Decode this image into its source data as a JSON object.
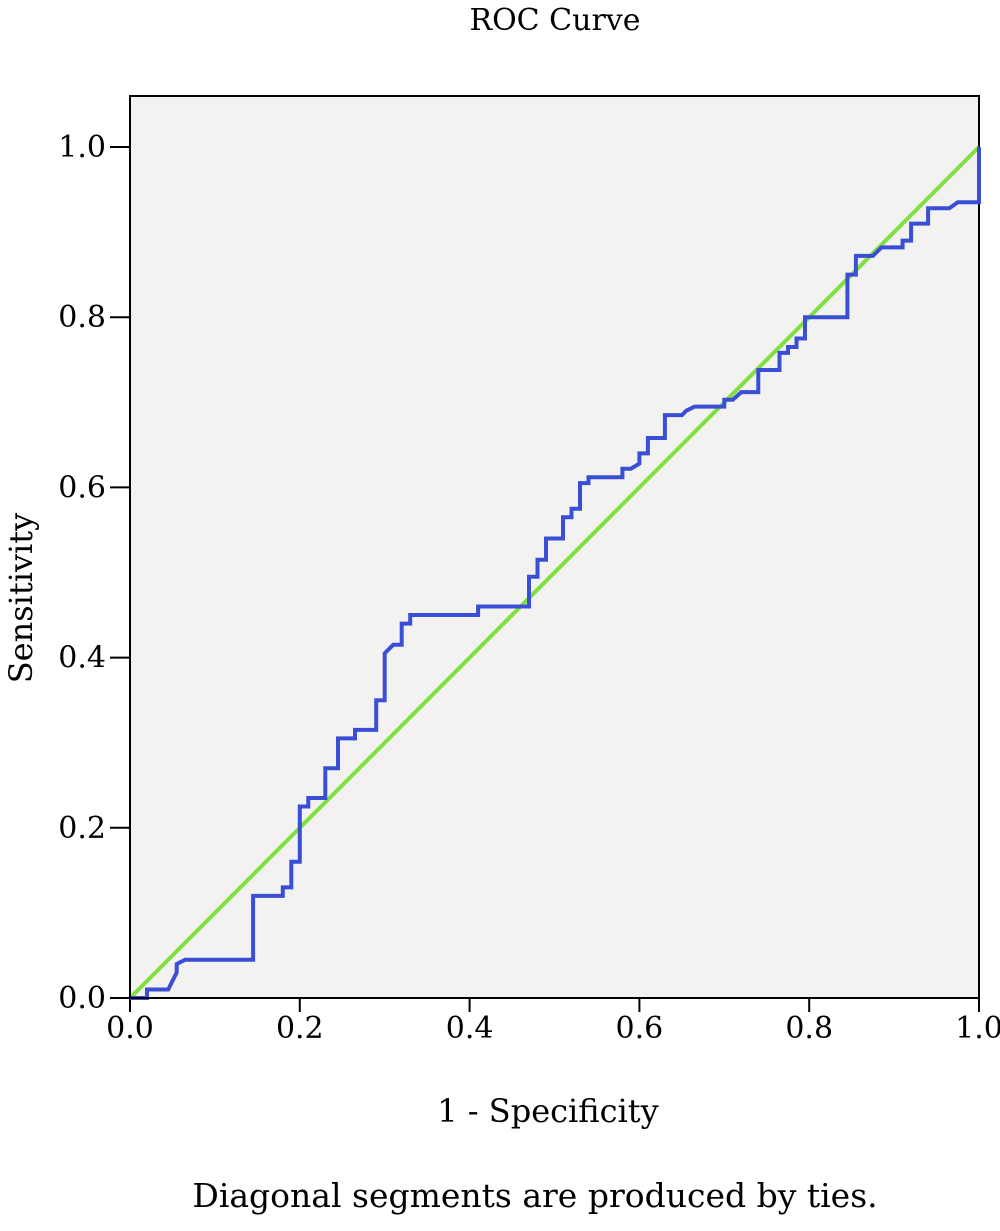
{
  "chart_data": {
    "type": "line",
    "title": "ROC Curve",
    "xlabel": "1 - Specificity",
    "ylabel": "Sensitivity",
    "footnote": "Diagonal segments are produced by ties.",
    "xlim": [
      0,
      1
    ],
    "ylim": [
      0,
      1
    ],
    "x_ticks": [
      0,
      0.2,
      0.4,
      0.6,
      0.8,
      1
    ],
    "x_tick_labels": [
      "0.0",
      "0.2",
      "0.4",
      "0.6",
      "0.8",
      "1.0"
    ],
    "y_ticks": [
      0,
      0.2,
      0.4,
      0.6,
      0.8,
      1
    ],
    "y_tick_labels": [
      "0.0",
      "0.2",
      "0.4",
      "0.6",
      "0.8",
      "1.0"
    ],
    "grid": false,
    "legend": "none",
    "colors": {
      "plot_background": "#f2f2f0",
      "roc_curve": "#3b4fd6",
      "reference_line": "#7fe040"
    },
    "series": [
      {
        "color": "#3b4fd6",
        "points": [
          [
            0.0,
            0.0
          ],
          [
            0.02,
            0.0
          ],
          [
            0.02,
            0.01
          ],
          [
            0.045,
            0.01
          ],
          [
            0.055,
            0.03
          ],
          [
            0.055,
            0.04
          ],
          [
            0.065,
            0.045
          ],
          [
            0.145,
            0.045
          ],
          [
            0.145,
            0.12
          ],
          [
            0.18,
            0.12
          ],
          [
            0.18,
            0.13
          ],
          [
            0.19,
            0.13
          ],
          [
            0.19,
            0.16
          ],
          [
            0.2,
            0.16
          ],
          [
            0.2,
            0.225
          ],
          [
            0.21,
            0.225
          ],
          [
            0.21,
            0.235
          ],
          [
            0.23,
            0.235
          ],
          [
            0.23,
            0.27
          ],
          [
            0.245,
            0.27
          ],
          [
            0.245,
            0.305
          ],
          [
            0.265,
            0.305
          ],
          [
            0.265,
            0.315
          ],
          [
            0.29,
            0.315
          ],
          [
            0.29,
            0.35
          ],
          [
            0.3,
            0.35
          ],
          [
            0.3,
            0.405
          ],
          [
            0.31,
            0.415
          ],
          [
            0.32,
            0.415
          ],
          [
            0.32,
            0.44
          ],
          [
            0.33,
            0.44
          ],
          [
            0.33,
            0.45
          ],
          [
            0.41,
            0.45
          ],
          [
            0.41,
            0.46
          ],
          [
            0.47,
            0.46
          ],
          [
            0.47,
            0.495
          ],
          [
            0.48,
            0.495
          ],
          [
            0.48,
            0.515
          ],
          [
            0.49,
            0.515
          ],
          [
            0.49,
            0.54
          ],
          [
            0.51,
            0.54
          ],
          [
            0.51,
            0.565
          ],
          [
            0.52,
            0.565
          ],
          [
            0.52,
            0.575
          ],
          [
            0.53,
            0.575
          ],
          [
            0.53,
            0.605
          ],
          [
            0.54,
            0.605
          ],
          [
            0.54,
            0.612
          ],
          [
            0.58,
            0.612
          ],
          [
            0.58,
            0.622
          ],
          [
            0.59,
            0.622
          ],
          [
            0.6,
            0.628
          ],
          [
            0.6,
            0.64
          ],
          [
            0.61,
            0.64
          ],
          [
            0.61,
            0.658
          ],
          [
            0.63,
            0.658
          ],
          [
            0.63,
            0.685
          ],
          [
            0.65,
            0.685
          ],
          [
            0.655,
            0.69
          ],
          [
            0.665,
            0.695
          ],
          [
            0.7,
            0.695
          ],
          [
            0.7,
            0.703
          ],
          [
            0.71,
            0.703
          ],
          [
            0.72,
            0.712
          ],
          [
            0.74,
            0.712
          ],
          [
            0.74,
            0.738
          ],
          [
            0.765,
            0.738
          ],
          [
            0.765,
            0.758
          ],
          [
            0.775,
            0.758
          ],
          [
            0.775,
            0.765
          ],
          [
            0.785,
            0.765
          ],
          [
            0.785,
            0.775
          ],
          [
            0.795,
            0.775
          ],
          [
            0.795,
            0.8
          ],
          [
            0.845,
            0.8
          ],
          [
            0.845,
            0.85
          ],
          [
            0.855,
            0.85
          ],
          [
            0.855,
            0.872
          ],
          [
            0.875,
            0.872
          ],
          [
            0.885,
            0.882
          ],
          [
            0.91,
            0.882
          ],
          [
            0.91,
            0.89
          ],
          [
            0.92,
            0.89
          ],
          [
            0.92,
            0.91
          ],
          [
            0.94,
            0.91
          ],
          [
            0.94,
            0.928
          ],
          [
            0.965,
            0.928
          ],
          [
            0.975,
            0.935
          ],
          [
            1.0,
            0.935
          ],
          [
            1.0,
            1.0
          ]
        ]
      },
      {
        "color": "#7fe040",
        "points": [
          [
            0,
            0
          ],
          [
            1,
            1
          ]
        ]
      }
    ]
  }
}
